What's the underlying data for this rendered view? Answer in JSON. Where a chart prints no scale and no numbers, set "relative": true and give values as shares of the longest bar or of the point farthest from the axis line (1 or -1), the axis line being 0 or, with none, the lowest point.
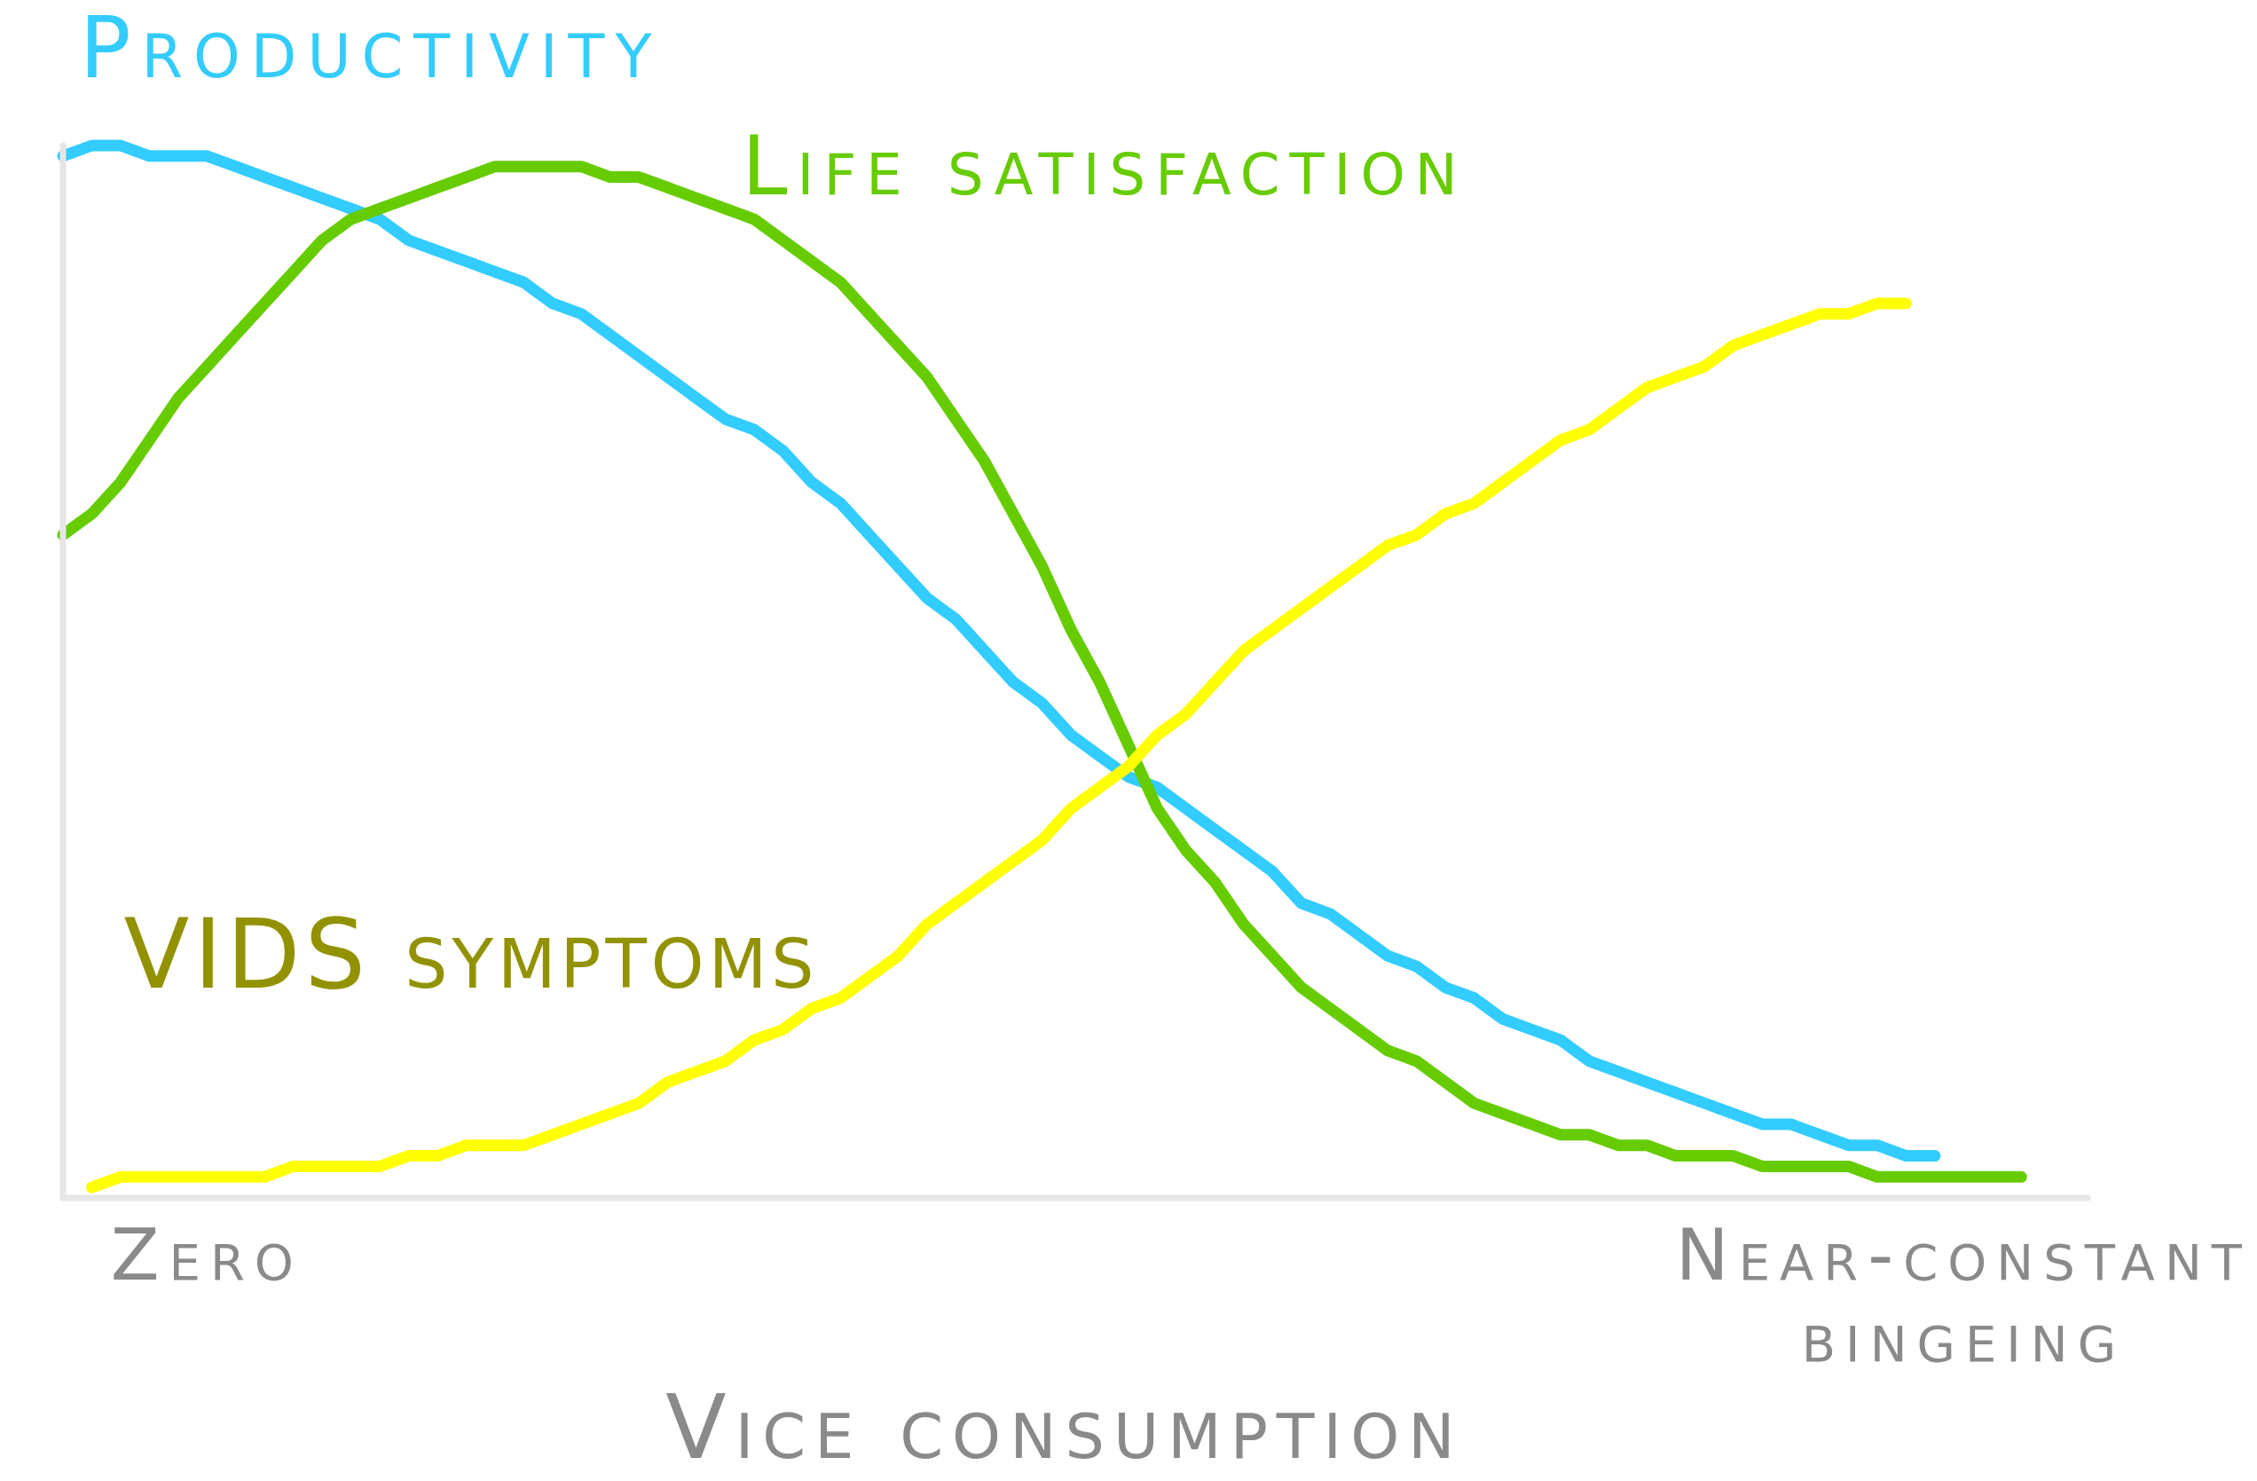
{
  "chart_data": {
    "type": "line",
    "relative": true,
    "xlabel": "Vice consumption",
    "categories": [
      null,
      null,
      null,
      null,
      null,
      "Zero",
      null,
      null,
      null,
      null,
      null,
      null,
      null,
      null,
      null,
      null,
      null,
      null,
      null,
      null,
      null,
      null,
      null,
      null,
      null,
      null,
      null,
      null,
      null,
      null,
      null,
      null,
      null,
      null,
      null,
      null,
      null,
      null,
      null,
      null,
      null,
      null,
      null,
      null,
      null,
      null,
      null,
      null,
      null,
      null,
      null,
      null,
      null,
      null,
      null,
      null,
      null,
      null,
      null,
      null,
      null,
      null,
      null,
      null,
      null,
      null,
      "Near-constant bingeing",
      null,
      null
    ],
    "series": [
      {
        "name": "Productivity",
        "color": "#33ccff",
        "values": [
          0.99,
          1.0,
          1.0,
          0.99,
          0.99,
          0.99,
          0.98,
          0.97,
          0.96,
          0.95,
          0.94,
          0.93,
          0.91,
          0.9,
          0.89,
          0.88,
          0.87,
          0.85,
          0.84,
          0.82,
          0.8,
          0.78,
          0.76,
          0.74,
          0.73,
          0.71,
          0.68,
          0.66,
          0.63,
          0.6,
          0.57,
          0.55,
          0.52,
          0.49,
          0.47,
          0.44,
          0.42,
          0.4,
          0.39,
          0.37,
          0.35,
          0.33,
          0.31,
          0.28,
          0.27,
          0.25,
          0.23,
          0.22,
          0.2,
          0.19,
          0.17,
          0.16,
          0.15,
          0.13,
          0.12,
          0.11,
          0.1,
          0.09,
          0.08,
          0.07,
          0.07,
          0.06,
          0.05,
          0.05,
          0.04,
          0.04,
          null,
          null,
          null
        ]
      },
      {
        "name": "Life satisfaction",
        "color": "#66cc00",
        "values": [
          0.63,
          0.65,
          0.68,
          0.72,
          0.76,
          0.79,
          0.82,
          0.85,
          0.88,
          0.91,
          0.93,
          0.94,
          0.95,
          0.96,
          0.97,
          0.98,
          0.98,
          0.98,
          0.98,
          0.97,
          0.97,
          0.96,
          0.95,
          0.94,
          0.93,
          0.91,
          0.89,
          0.87,
          0.84,
          0.81,
          0.78,
          0.74,
          0.7,
          0.65,
          0.6,
          0.54,
          0.49,
          0.43,
          0.37,
          0.33,
          0.3,
          0.26,
          0.23,
          0.2,
          0.18,
          0.16,
          0.14,
          0.13,
          0.11,
          0.09,
          0.08,
          0.07,
          0.06,
          0.06,
          0.05,
          0.05,
          0.04,
          0.04,
          0.04,
          0.03,
          0.03,
          0.03,
          0.03,
          0.02,
          0.02,
          0.02,
          0.02,
          0.02,
          0.02
        ]
      },
      {
        "name": "VIDS symptoms",
        "color": "#ffff00",
        "values": [
          null,
          0.01,
          0.02,
          0.02,
          0.02,
          0.02,
          0.02,
          0.02,
          0.03,
          0.03,
          0.03,
          0.03,
          0.04,
          0.04,
          0.05,
          0.05,
          0.05,
          0.06,
          0.07,
          0.08,
          0.09,
          0.11,
          0.12,
          0.13,
          0.15,
          0.16,
          0.18,
          0.19,
          0.21,
          0.23,
          0.26,
          0.28,
          0.3,
          0.32,
          0.34,
          0.37,
          0.39,
          0.41,
          0.44,
          0.46,
          0.49,
          0.52,
          0.54,
          0.56,
          0.58,
          0.6,
          0.62,
          0.63,
          0.65,
          0.66,
          0.68,
          0.7,
          0.72,
          0.73,
          0.75,
          0.77,
          0.78,
          0.79,
          0.81,
          0.82,
          0.83,
          0.84,
          0.84,
          0.85,
          0.85,
          null,
          null,
          null,
          null
        ]
      }
    ]
  }
}
